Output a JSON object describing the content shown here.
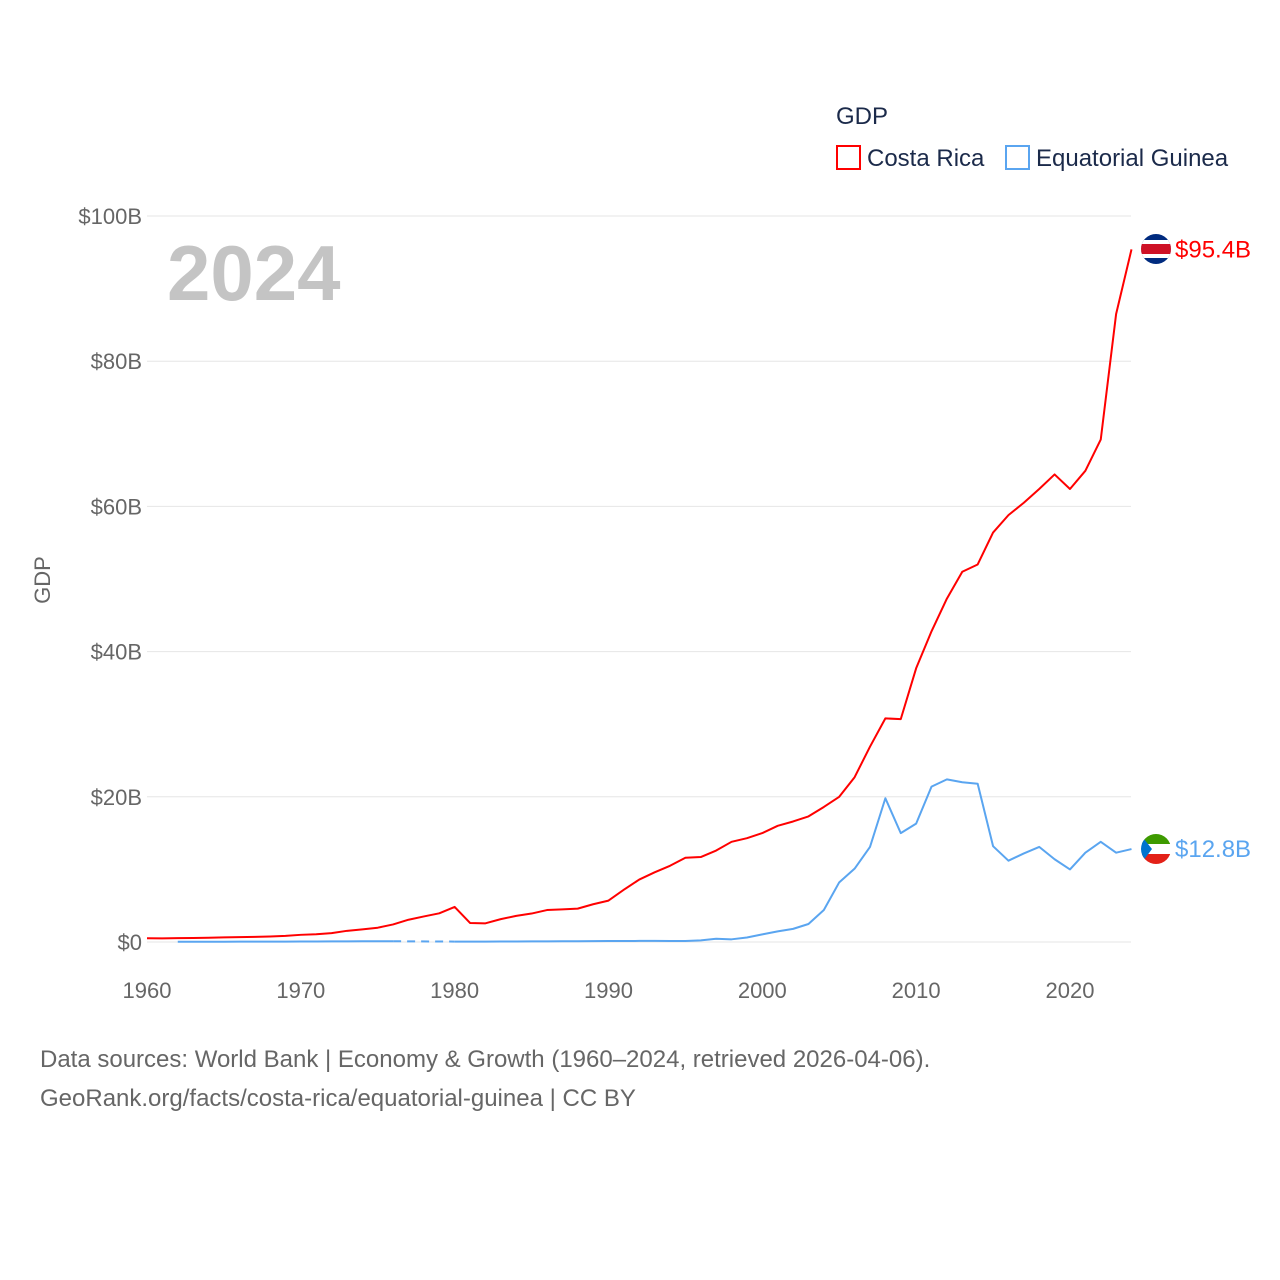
{
  "chart_data": {
    "type": "line",
    "ylabel": "GDP",
    "xlabel": "",
    "year_watermark": "2024",
    "legend": {
      "title": "GDP",
      "placement": "top-right"
    },
    "xlim": [
      1960,
      2024
    ],
    "ylim": [
      0,
      100
    ],
    "x_ticks": [
      "1960",
      "1970",
      "1980",
      "1990",
      "2000",
      "2010",
      "2020"
    ],
    "y_ticks": [
      "$0",
      "$20B",
      "$40B",
      "$60B",
      "$80B",
      "$100B"
    ],
    "grid": true,
    "x": [
      1960,
      1961,
      1962,
      1963,
      1964,
      1965,
      1966,
      1967,
      1968,
      1969,
      1970,
      1971,
      1972,
      1973,
      1974,
      1975,
      1976,
      1977,
      1978,
      1979,
      1980,
      1981,
      1982,
      1983,
      1984,
      1985,
      1986,
      1987,
      1988,
      1989,
      1990,
      1991,
      1992,
      1993,
      1994,
      1995,
      1996,
      1997,
      1998,
      1999,
      2000,
      2001,
      2002,
      2003,
      2004,
      2005,
      2006,
      2007,
      2008,
      2009,
      2010,
      2011,
      2012,
      2013,
      2014,
      2015,
      2016,
      2017,
      2018,
      2019,
      2020,
      2021,
      2022,
      2023,
      2024
    ],
    "series": [
      {
        "name": "Costa Rica",
        "color": "#ff0000",
        "end_label": "$95.4B",
        "values": [
          0.51,
          0.5,
          0.53,
          0.55,
          0.58,
          0.63,
          0.67,
          0.71,
          0.76,
          0.84,
          0.99,
          1.07,
          1.22,
          1.54,
          1.74,
          1.97,
          2.42,
          3.07,
          3.52,
          3.95,
          4.83,
          2.62,
          2.57,
          3.15,
          3.6,
          3.92,
          4.4,
          4.5,
          4.6,
          5.2,
          5.7,
          7.2,
          8.6,
          9.6,
          10.5,
          11.6,
          11.7,
          12.6,
          13.8,
          14.3,
          15.0,
          16.0,
          16.6,
          17.3,
          18.6,
          20.0,
          22.7,
          26.9,
          30.8,
          30.7,
          37.7,
          42.8,
          47.3,
          51.0,
          52.0,
          56.4,
          58.8,
          60.5,
          62.4,
          64.4,
          62.4,
          64.9,
          69.2,
          86.5,
          95.4
        ]
      },
      {
        "name": "Equatorial Guinea",
        "color": "#5aa5f0",
        "end_label": "$12.8B",
        "values": [
          null,
          null,
          0.03,
          0.03,
          0.04,
          0.04,
          0.05,
          0.05,
          0.06,
          0.06,
          0.07,
          0.07,
          0.08,
          0.09,
          0.1,
          0.1,
          0.1,
          null,
          null,
          null,
          0.06,
          0.06,
          0.06,
          0.07,
          0.07,
          0.08,
          0.09,
          0.1,
          0.11,
          0.12,
          0.13,
          0.13,
          0.15,
          0.15,
          0.13,
          0.14,
          0.23,
          0.44,
          0.37,
          0.62,
          1.05,
          1.46,
          1.81,
          2.48,
          4.41,
          8.22,
          10.1,
          13.1,
          19.8,
          15.0,
          16.3,
          21.4,
          22.4,
          22.0,
          21.8,
          13.2,
          11.2,
          12.2,
          13.1,
          11.4,
          10.0,
          12.3,
          13.8,
          12.3,
          12.8
        ]
      }
    ]
  },
  "footer": {
    "line1": "Data sources: World Bank | Economy & Growth (1960–2024, retrieved 2026-04-06).",
    "line2": "GeoRank.org/facts/costa-rica/equatorial-guinea | CC BY"
  }
}
